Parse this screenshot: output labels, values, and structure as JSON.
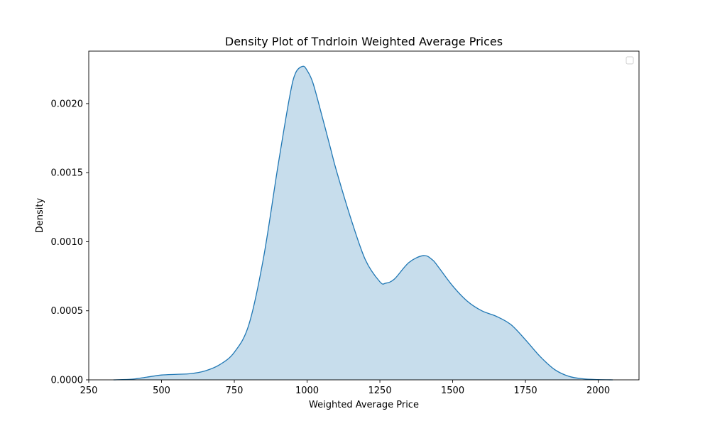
{
  "chart_data": {
    "type": "area",
    "title": "Density Plot of Tndrloin Weighted Average Prices",
    "xlabel": "Weighted Average Price",
    "ylabel": "Density",
    "xlim": [
      250,
      2140
    ],
    "ylim": [
      0,
      0.00238
    ],
    "xticks": [
      250,
      500,
      750,
      1000,
      1250,
      1500,
      1750,
      2000
    ],
    "xtick_labels": [
      "250",
      "500",
      "750",
      "1000",
      "1250",
      "1500",
      "1750",
      "2000"
    ],
    "yticks": [
      0,
      0.0005,
      0.001,
      0.0015,
      0.002
    ],
    "ytick_labels": [
      "0.0000",
      "0.0005",
      "0.0010",
      "0.0015",
      "0.0020"
    ],
    "grid": false,
    "legend": "top-right (empty)",
    "series": [
      {
        "color": "#1f77b4",
        "fill_color": "#1f77b4",
        "fill_opacity": 0.25,
        "x": [
          335,
          400,
          450,
          500,
          550,
          600,
          650,
          700,
          750,
          800,
          850,
          900,
          940,
          960,
          985,
          1000,
          1020,
          1050,
          1080,
          1100,
          1150,
          1200,
          1250,
          1270,
          1300,
          1350,
          1400,
          1430,
          1450,
          1500,
          1550,
          1600,
          1650,
          1700,
          1750,
          1800,
          1850,
          1900,
          1950,
          2000,
          2050
        ],
        "y": [
          0.0,
          5e-06,
          2e-05,
          3.5e-05,
          4e-05,
          4.5e-05,
          6.5e-05,
          0.00011,
          0.0002,
          0.0004,
          0.00088,
          0.00155,
          0.00205,
          0.00222,
          0.00227,
          0.00224,
          0.00215,
          0.00192,
          0.00168,
          0.00152,
          0.00117,
          0.00087,
          0.00071,
          0.0007,
          0.00073,
          0.00085,
          0.0009,
          0.00087,
          0.00082,
          0.00068,
          0.00057,
          0.0005,
          0.00046,
          0.0004,
          0.00029,
          0.00017,
          7.5e-05,
          2.5e-05,
          7e-06,
          2e-06,
          0.0
        ]
      }
    ]
  }
}
